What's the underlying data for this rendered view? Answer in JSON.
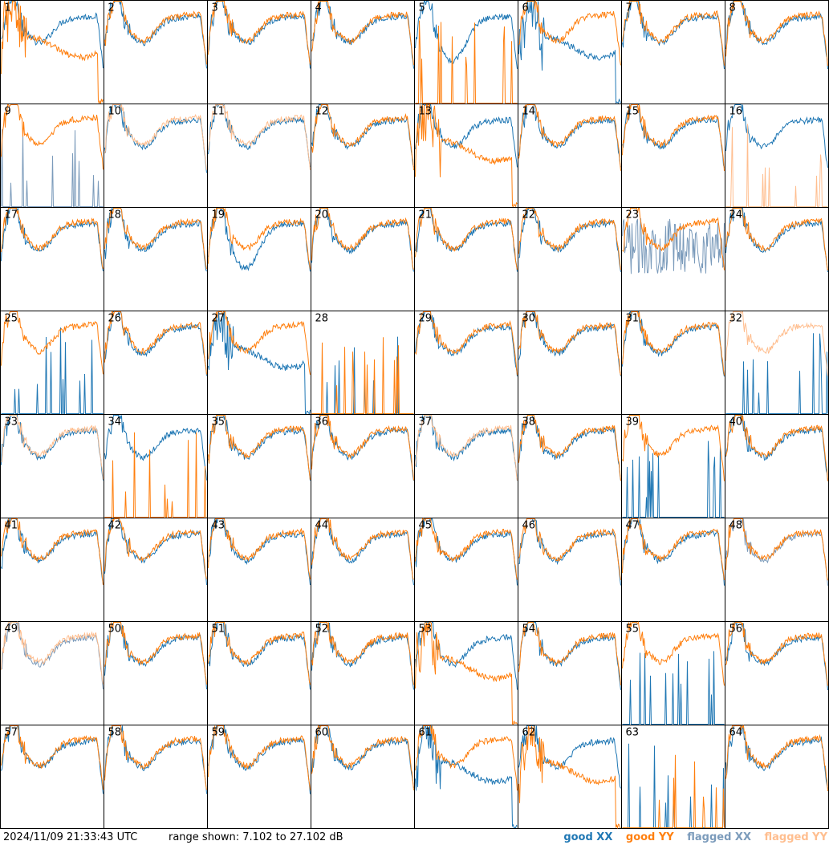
{
  "title": "",
  "timestamp": "2024/11/09 21:33:43 UTC",
  "range_text": "range shown: 7.102 to 27.102 dB",
  "legend": {
    "good_xx": "good XX",
    "good_yy": "good YY",
    "flagged_xx": "flagged XX",
    "flagged_yy": "flagged YY"
  },
  "colors": {
    "good_xx": "#1f77b4",
    "good_yy": "#ff7f0e",
    "flagged_xx": "#7b9bbb",
    "flagged_yy": "#ffbe8f",
    "border": "#000000"
  },
  "chart_data": {
    "type": "line",
    "layout": "small-multiples grid 8x8",
    "ylim": [
      7.102,
      27.102
    ],
    "unit": "dB",
    "x_ticks": [],
    "panels": [
      {
        "label": "1",
        "xx": "good",
        "yy": "good",
        "yy_profile": "drop"
      },
      {
        "label": "2",
        "xx": "good",
        "yy": "good"
      },
      {
        "label": "3",
        "xx": "good",
        "yy": "good"
      },
      {
        "label": "4",
        "xx": "good",
        "yy": "good"
      },
      {
        "label": "5",
        "xx": "good",
        "yy": "dead",
        "xx_profile": "low"
      },
      {
        "label": "6",
        "xx": "good",
        "yy": "good",
        "xx_profile": "drop"
      },
      {
        "label": "7",
        "xx": "good",
        "yy": "good"
      },
      {
        "label": "8",
        "xx": "good",
        "yy": "good"
      },
      {
        "label": "9",
        "xx": "flagged_dead",
        "yy": "good"
      },
      {
        "label": "10",
        "xx": "good",
        "yy": "flagged"
      },
      {
        "label": "11",
        "xx": "good",
        "yy": "flagged"
      },
      {
        "label": "12",
        "xx": "good",
        "yy": "good"
      },
      {
        "label": "13",
        "xx": "good",
        "yy": "good",
        "yy_profile": "drop"
      },
      {
        "label": "14",
        "xx": "good",
        "yy": "good"
      },
      {
        "label": "15",
        "xx": "good",
        "yy": "good"
      },
      {
        "label": "16",
        "xx": "good",
        "yy": "dead_flagged"
      },
      {
        "label": "17",
        "xx": "good",
        "yy": "good"
      },
      {
        "label": "18",
        "xx": "good",
        "yy": "good"
      },
      {
        "label": "19",
        "xx": "good",
        "yy": "good",
        "xx_profile": "low"
      },
      {
        "label": "20",
        "xx": "good",
        "yy": "good"
      },
      {
        "label": "21",
        "xx": "good",
        "yy": "good"
      },
      {
        "label": "22",
        "xx": "good",
        "yy": "good"
      },
      {
        "label": "23",
        "xx": "flagged_noisy",
        "yy": "good"
      },
      {
        "label": "24",
        "xx": "good",
        "yy": "good"
      },
      {
        "label": "25",
        "xx": "dead",
        "yy": "good"
      },
      {
        "label": "26",
        "xx": "good",
        "yy": "good"
      },
      {
        "label": "27",
        "xx": "good",
        "yy": "good",
        "xx_profile": "drop"
      },
      {
        "label": "28",
        "xx": "dead",
        "yy": "dead"
      },
      {
        "label": "29",
        "xx": "good",
        "yy": "good"
      },
      {
        "label": "30",
        "xx": "good",
        "yy": "good"
      },
      {
        "label": "31",
        "xx": "good",
        "yy": "good"
      },
      {
        "label": "32",
        "xx": "dead",
        "yy": "flagged"
      },
      {
        "label": "33",
        "xx": "good",
        "yy": "flagged"
      },
      {
        "label": "34",
        "xx": "good",
        "yy": "dead"
      },
      {
        "label": "35",
        "xx": "good",
        "yy": "good"
      },
      {
        "label": "36",
        "xx": "good",
        "yy": "good"
      },
      {
        "label": "37",
        "xx": "good",
        "yy": "flagged"
      },
      {
        "label": "38",
        "xx": "good",
        "yy": "good"
      },
      {
        "label": "39",
        "xx": "dead",
        "yy": "good"
      },
      {
        "label": "40",
        "xx": "good",
        "yy": "good"
      },
      {
        "label": "41",
        "xx": "good",
        "yy": "good"
      },
      {
        "label": "42",
        "xx": "good",
        "yy": "good"
      },
      {
        "label": "43",
        "xx": "good",
        "yy": "good"
      },
      {
        "label": "44",
        "xx": "good",
        "yy": "good"
      },
      {
        "label": "45",
        "xx": "good",
        "yy": "good"
      },
      {
        "label": "46",
        "xx": "good",
        "yy": "good"
      },
      {
        "label": "47",
        "xx": "good",
        "yy": "good"
      },
      {
        "label": "48",
        "xx": "flagged",
        "yy": "good"
      },
      {
        "label": "49",
        "xx": "flagged",
        "yy": "flagged"
      },
      {
        "label": "50",
        "xx": "good",
        "yy": "good"
      },
      {
        "label": "51",
        "xx": "good",
        "yy": "good"
      },
      {
        "label": "52",
        "xx": "good",
        "yy": "good"
      },
      {
        "label": "53",
        "xx": "good",
        "yy": "good",
        "yy_profile": "drop"
      },
      {
        "label": "54",
        "xx": "good",
        "yy": "good"
      },
      {
        "label": "55",
        "xx": "dead",
        "yy": "good"
      },
      {
        "label": "56",
        "xx": "good",
        "yy": "good"
      },
      {
        "label": "57",
        "xx": "good",
        "yy": "good"
      },
      {
        "label": "58",
        "xx": "good",
        "yy": "good"
      },
      {
        "label": "59",
        "xx": "good",
        "yy": "good"
      },
      {
        "label": "60",
        "xx": "good",
        "yy": "good"
      },
      {
        "label": "61",
        "xx": "good",
        "yy": "good",
        "xx_profile": "drop"
      },
      {
        "label": "62",
        "xx": "good",
        "yy": "good",
        "yy_profile": "drop"
      },
      {
        "label": "63",
        "xx": "dead",
        "yy": "dead"
      },
      {
        "label": "64",
        "xx": "good",
        "yy": "good"
      }
    ]
  }
}
